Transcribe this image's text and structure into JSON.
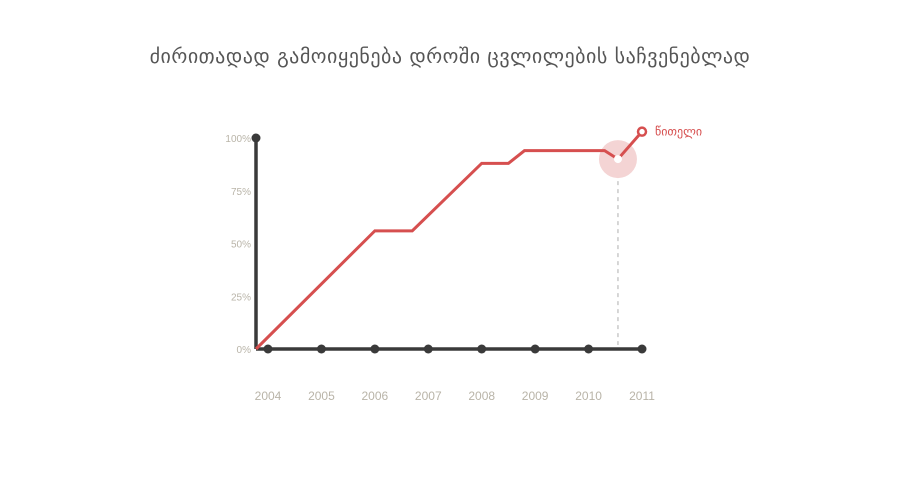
{
  "chart_data": {
    "type": "line",
    "title": "ძირითადად გამოიყენება დროში ცვლილების საჩვენებლად",
    "xlabel": "",
    "ylabel": "",
    "x_ticks": [
      "2004",
      "2005",
      "2006",
      "2007",
      "2008",
      "2009",
      "2010",
      "2011"
    ],
    "y_ticks": [
      "0%",
      "25%",
      "50%",
      "75%",
      "100%"
    ],
    "ylim": [
      0,
      100
    ],
    "xlim": [
      2004,
      2011
    ],
    "grid": false,
    "legend": "top-right",
    "series": [
      {
        "name": "წითელი",
        "color": "#d64f4f",
        "x": [
          2004,
          2006,
          2006.7,
          2008,
          2008.5,
          2008.8,
          2010.3,
          2010.55,
          2011
        ],
        "y": [
          0,
          56,
          56,
          88,
          88,
          94,
          94,
          90,
          103
        ]
      }
    ],
    "highlight": {
      "x": 2010.55,
      "y": 90,
      "color": "#f4d4d4"
    },
    "axis_color": "#3a3a3a"
  }
}
